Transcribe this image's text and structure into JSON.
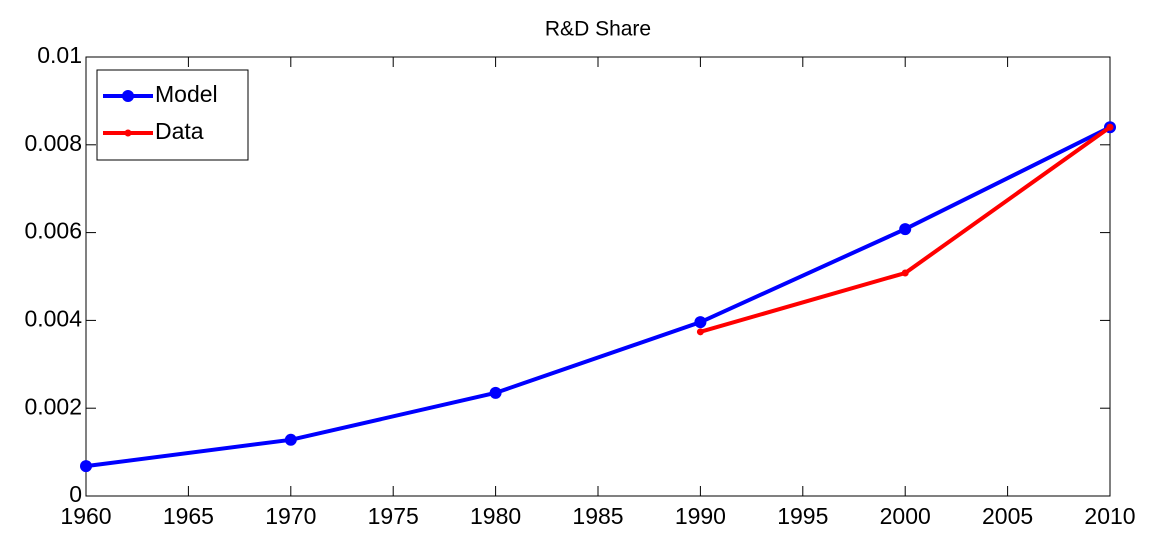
{
  "chart_data": {
    "type": "line",
    "title": "R&D Share",
    "x": [
      1960,
      1970,
      1980,
      1990,
      2000,
      2010
    ],
    "series": [
      {
        "name": "Model",
        "color": "#0000ff",
        "values": [
          0.00068,
          0.00128,
          0.00235,
          0.00396,
          0.00608,
          0.0084
        ]
      },
      {
        "name": "Data",
        "color": "#ff0000",
        "values": [
          null,
          null,
          null,
          0.00374,
          0.00508,
          0.0084
        ]
      }
    ],
    "xlim": [
      1960,
      2010
    ],
    "xticks": [
      1960,
      1965,
      1970,
      1975,
      1980,
      1985,
      1990,
      1995,
      2000,
      2005,
      2010
    ],
    "ylim": [
      0,
      0.01
    ],
    "yticks": [
      0,
      0.002,
      0.004,
      0.006,
      0.008,
      0.01
    ],
    "legend": "upper left"
  }
}
